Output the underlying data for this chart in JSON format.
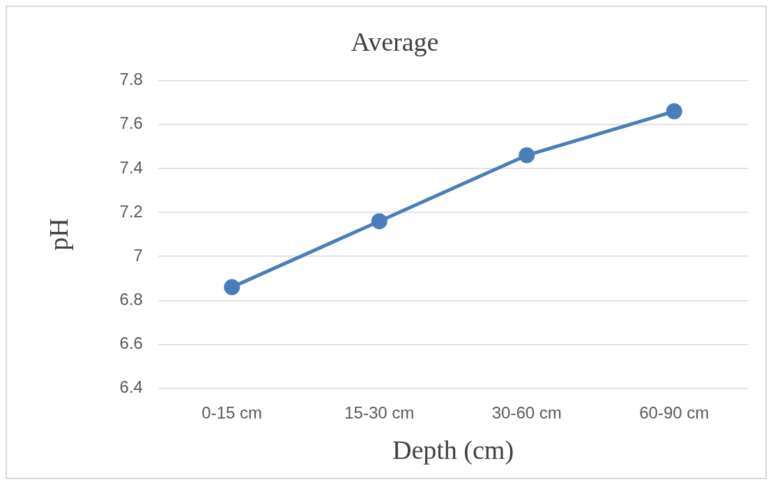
{
  "chart_data": {
    "type": "line",
    "title": "Average",
    "xlabel": "Depth (cm)",
    "ylabel": "pH",
    "categories": [
      "0-15 cm",
      "15-30 cm",
      "30-60 cm",
      "60-90 cm"
    ],
    "series": [
      {
        "color": "#4a7ebb",
        "values": [
          6.86,
          7.16,
          7.46,
          7.66
        ]
      }
    ],
    "ylim": [
      6.4,
      7.8
    ],
    "yticks": [
      6.4,
      6.6,
      6.8,
      7,
      7.2,
      7.4,
      7.6,
      7.8
    ],
    "grid": "y",
    "legend": false,
    "marker": "circle",
    "line_style": "solid"
  }
}
